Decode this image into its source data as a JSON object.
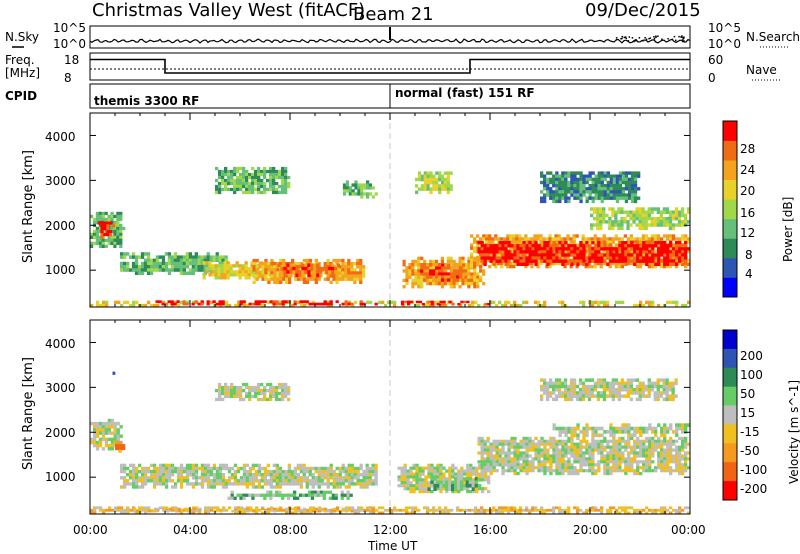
{
  "header": {
    "station": "Christmas Valley West (fitACF)",
    "beam": "Beam 21",
    "date": "09/Dec/2015"
  },
  "summary": {
    "left_labels": [
      "N.Sky",
      "Freq.",
      "[MHz]",
      "CPID"
    ],
    "right_labels": [
      "N.Search",
      "Nave"
    ],
    "noise_ticks_left": [
      "10^5",
      "10^0"
    ],
    "noise_ticks_right": [
      "10^5",
      "10^0"
    ],
    "freq_ticks": [
      "18",
      "8"
    ],
    "nave_ticks": [
      "60",
      "0"
    ],
    "cpid_segments": [
      {
        "label": "themis 3300 RF",
        "start_hour": 0,
        "end_hour": 12
      },
      {
        "label": "normal (fast) 151 RF",
        "start_hour": 12,
        "end_hour": 24
      }
    ],
    "frequency_steps_mhz": [
      [
        0,
        15.8
      ],
      [
        3.0,
        10.4
      ],
      [
        15.0,
        10.4
      ],
      [
        15.2,
        15.8
      ],
      [
        24,
        15.8
      ]
    ]
  },
  "power_colorbar": {
    "label": "Power [dB]",
    "ticks": [
      "4",
      "8",
      "12",
      "16",
      "20",
      "24",
      "28"
    ],
    "colors": [
      "#0000ff",
      "#2e55b4",
      "#2e8b57",
      "#66c07a",
      "#a0d84a",
      "#e8d22a",
      "#f5a21e",
      "#f06c14",
      "#ff0000"
    ]
  },
  "velocity_colorbar": {
    "label": "Velocity [m s^-1]",
    "ticks": [
      "200",
      "100",
      "50",
      "15",
      "-15",
      "-50",
      "-100",
      "-200"
    ],
    "colors": [
      "#0000cd",
      "#2e55b4",
      "#2e8b57",
      "#66cc66",
      "#bebebe",
      "#f0c020",
      "#f59a1e",
      "#f06414",
      "#ff0000"
    ]
  },
  "axes": {
    "ylabel": "Slant Range [km]",
    "xlabel": "Time UT",
    "yticks": [
      "1000",
      "2000",
      "3000",
      "4000"
    ],
    "xticks": [
      "00:00",
      "04:00",
      "08:00",
      "12:00",
      "16:00",
      "20:00",
      "00:00"
    ]
  },
  "chart_data": {
    "type": "heatmap",
    "x_range_hours": [
      0,
      24
    ],
    "y_range_km": [
      180,
      4500
    ],
    "marker_hour": 12,
    "power_regions": [
      {
        "t0": 0.0,
        "t1": 1.4,
        "r0": 1500,
        "r1": 2300,
        "level": 3
      },
      {
        "t0": 0.3,
        "t1": 1.0,
        "r0": 1700,
        "r1": 2150,
        "level": 8
      },
      {
        "t0": 1.2,
        "t1": 5.5,
        "r0": 900,
        "r1": 1400,
        "level": 3
      },
      {
        "t0": 4.5,
        "t1": 7.5,
        "r0": 800,
        "r1": 1200,
        "level": 5
      },
      {
        "t0": 6.5,
        "t1": 11.0,
        "r0": 700,
        "r1": 1250,
        "level": 6
      },
      {
        "t0": 7.5,
        "t1": 10.0,
        "r0": 850,
        "r1": 1150,
        "level": 7
      },
      {
        "t0": 12.5,
        "t1": 15.8,
        "r0": 600,
        "r1": 1300,
        "level": 6
      },
      {
        "t0": 13.2,
        "t1": 15.0,
        "r0": 750,
        "r1": 1150,
        "level": 7
      },
      {
        "t0": 15.2,
        "t1": 24.0,
        "r0": 1050,
        "r1": 1800,
        "level": 6
      },
      {
        "t0": 15.5,
        "t1": 24.0,
        "r0": 1100,
        "r1": 1650,
        "level": 8
      },
      {
        "t0": 20.0,
        "t1": 24.0,
        "r0": 1900,
        "r1": 2400,
        "level": 4
      },
      {
        "t0": 0.0,
        "t1": 24.0,
        "r0": 180,
        "r1": 320,
        "level": 5
      },
      {
        "t0": 2.5,
        "t1": 11.5,
        "r0": 220,
        "r1": 330,
        "level": 8
      },
      {
        "t0": 12.2,
        "t1": 16.0,
        "r0": 220,
        "r1": 320,
        "level": 8
      },
      {
        "t0": 5.0,
        "t1": 8.0,
        "r0": 2700,
        "r1": 3300,
        "level": 3
      },
      {
        "t0": 10.0,
        "t1": 11.5,
        "r0": 2600,
        "r1": 3000,
        "level": 3
      },
      {
        "t0": 13.0,
        "t1": 14.5,
        "r0": 2700,
        "r1": 3200,
        "level": 4
      },
      {
        "t0": 18.0,
        "t1": 22.0,
        "r0": 2500,
        "r1": 3200,
        "level": 2
      }
    ],
    "velocity_regions": [
      {
        "t0": 0.0,
        "t1": 1.3,
        "r0": 1600,
        "r1": 2300,
        "level": 4
      },
      {
        "t0": 1.0,
        "t1": 1.4,
        "r0": 1550,
        "r1": 1800,
        "level": 6
      },
      {
        "t0": 1.2,
        "t1": 11.5,
        "r0": 750,
        "r1": 1300,
        "level": 4
      },
      {
        "t0": 5.5,
        "t1": 10.5,
        "r0": 500,
        "r1": 700,
        "level": 3
      },
      {
        "t0": 12.3,
        "t1": 16.0,
        "r0": 650,
        "r1": 1300,
        "level": 4
      },
      {
        "t0": 13.5,
        "t1": 15.5,
        "r0": 700,
        "r1": 1000,
        "level": 3
      },
      {
        "t0": 15.5,
        "t1": 24.0,
        "r0": 1050,
        "r1": 1900,
        "level": 4
      },
      {
        "t0": 18.5,
        "t1": 24.0,
        "r0": 1900,
        "r1": 2200,
        "level": 4
      },
      {
        "t0": 0.0,
        "t1": 24.0,
        "r0": 180,
        "r1": 350,
        "level": 5
      },
      {
        "t0": 1.0,
        "t1": 11.5,
        "r0": 220,
        "r1": 320,
        "level": 5
      },
      {
        "t0": 0.8,
        "t1": 1.0,
        "r0": 3150,
        "r1": 3350,
        "level": 1
      },
      {
        "t0": 5.0,
        "t1": 8.0,
        "r0": 2700,
        "r1": 3100,
        "level": 4
      },
      {
        "t0": 18.0,
        "t1": 23.5,
        "r0": 2700,
        "r1": 3200,
        "level": 4
      }
    ]
  }
}
